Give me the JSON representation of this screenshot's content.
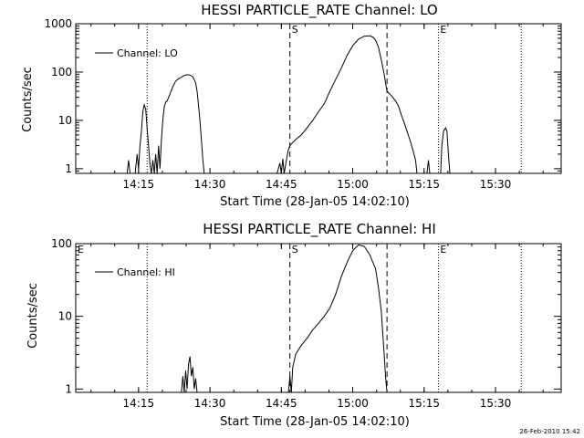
{
  "footer": {
    "timestamp": "26-Feb-2010 15:42"
  },
  "chart_data": [
    {
      "type": "line",
      "title": "HESSI PARTICLE_RATE Channel: LO",
      "xlabel": "Start Time (28-Jan-05 14:02:10)",
      "ylabel": "Counts/sec",
      "yscale": "log",
      "ylim": [
        0.8,
        1000
      ],
      "xlim": [
        14.03,
        15.73
      ],
      "xticks": [
        {
          "x": 14.25,
          "label": "14:15"
        },
        {
          "x": 14.5,
          "label": "14:30"
        },
        {
          "x": 14.75,
          "label": "14:45"
        },
        {
          "x": 15.0,
          "label": "15:00"
        },
        {
          "x": 15.25,
          "label": "15:15"
        },
        {
          "x": 15.5,
          "label": "15:30"
        }
      ],
      "yticks": [
        {
          "y": 1,
          "label": "1"
        },
        {
          "y": 10,
          "label": "10"
        },
        {
          "y": 100,
          "label": "100"
        },
        {
          "y": 1000,
          "label": "1000"
        }
      ],
      "legend": {
        "label": "Channel: LO",
        "position": "top-left"
      },
      "markers": [
        {
          "x": 14.28,
          "style": "dotted",
          "label": ""
        },
        {
          "x": 14.78,
          "style": "dashed",
          "label": "S"
        },
        {
          "x": 15.12,
          "style": "dashed",
          "label": ""
        },
        {
          "x": 15.3,
          "style": "dotted",
          "label": "E"
        },
        {
          "x": 15.59,
          "style": "dotted",
          "label": ""
        }
      ],
      "series": [
        {
          "segments": [
            [
              [
                14.21,
                0.8
              ],
              [
                14.215,
                1.5
              ],
              [
                14.22,
                0.8
              ]
            ],
            [
              [
                14.238,
                0.8
              ],
              [
                14.245,
                2
              ],
              [
                14.25,
                1
              ],
              [
                14.255,
                3
              ],
              [
                14.26,
                6
              ],
              [
                14.265,
                15
              ],
              [
                14.27,
                21
              ],
              [
                14.275,
                17
              ],
              [
                14.28,
                7
              ],
              [
                14.285,
                3
              ],
              [
                14.29,
                1.2
              ],
              [
                14.295,
                0.8
              ]
            ],
            [
              [
                14.295,
                0.8
              ],
              [
                14.3,
                1.5
              ],
              [
                14.305,
                0.8
              ],
              [
                14.31,
                2
              ],
              [
                14.315,
                0.8
              ],
              [
                14.32,
                3
              ],
              [
                14.325,
                1
              ],
              [
                14.33,
                4
              ],
              [
                14.335,
                10
              ],
              [
                14.34,
                19
              ],
              [
                14.345,
                24
              ],
              [
                14.35,
                25
              ],
              [
                14.36,
                35
              ],
              [
                14.37,
                50
              ],
              [
                14.38,
                65
              ],
              [
                14.39,
                73
              ],
              [
                14.4,
                78
              ],
              [
                14.41,
                85
              ],
              [
                14.42,
                88
              ],
              [
                14.43,
                87
              ],
              [
                14.44,
                80
              ],
              [
                14.45,
                60
              ],
              [
                14.455,
                40
              ],
              [
                14.46,
                20
              ],
              [
                14.465,
                10
              ],
              [
                14.47,
                4
              ],
              [
                14.475,
                1.5
              ],
              [
                14.48,
                0.8
              ]
            ],
            [
              [
                14.735,
                0.8
              ],
              [
                14.745,
                1.3
              ],
              [
                14.75,
                0.8
              ],
              [
                14.755,
                1.6
              ],
              [
                14.76,
                0.8
              ],
              [
                14.77,
                1.8
              ],
              [
                14.775,
                2.5
              ],
              [
                14.78,
                3
              ],
              [
                14.79,
                3.5
              ],
              [
                14.8,
                4
              ],
              [
                14.82,
                5
              ],
              [
                14.84,
                7
              ],
              [
                14.86,
                10
              ],
              [
                14.88,
                15
              ],
              [
                14.9,
                22
              ],
              [
                14.92,
                40
              ],
              [
                14.94,
                70
              ],
              [
                14.96,
                120
              ],
              [
                14.98,
                220
              ],
              [
                15.0,
                350
              ],
              [
                15.02,
                480
              ],
              [
                15.04,
                550
              ],
              [
                15.06,
                560
              ],
              [
                15.07,
                530
              ],
              [
                15.08,
                460
              ],
              [
                15.09,
                330
              ],
              [
                15.1,
                180
              ],
              [
                15.11,
                90
              ],
              [
                15.115,
                60
              ],
              [
                15.12,
                40
              ],
              [
                15.13,
                35
              ],
              [
                15.14,
                30
              ],
              [
                15.15,
                25
              ],
              [
                15.16,
                20
              ],
              [
                15.17,
                13
              ],
              [
                15.18,
                9
              ],
              [
                15.19,
                6
              ],
              [
                15.2,
                4
              ],
              [
                15.21,
                2.5
              ],
              [
                15.22,
                1.5
              ],
              [
                15.225,
                0.8
              ]
            ],
            [
              [
                15.26,
                0.8
              ],
              [
                15.265,
                1.5
              ],
              [
                15.27,
                0.8
              ]
            ],
            [
              [
                15.308,
                0.8
              ],
              [
                15.312,
                3
              ],
              [
                15.318,
                6
              ],
              [
                15.325,
                7
              ],
              [
                15.33,
                6
              ],
              [
                15.335,
                2
              ],
              [
                15.34,
                0.8
              ]
            ]
          ]
        }
      ]
    },
    {
      "type": "line",
      "title": "HESSI PARTICLE_RATE Channel: HI",
      "xlabel": "Start Time (28-Jan-05 14:02:10)",
      "ylabel": "Counts/sec",
      "yscale": "log",
      "ylim": [
        0.9,
        100
      ],
      "xlim": [
        14.03,
        15.73
      ],
      "xticks": [
        {
          "x": 14.25,
          "label": "14:15"
        },
        {
          "x": 14.5,
          "label": "14:30"
        },
        {
          "x": 14.75,
          "label": "14:45"
        },
        {
          "x": 15.0,
          "label": "15:00"
        },
        {
          "x": 15.25,
          "label": "15:15"
        },
        {
          "x": 15.5,
          "label": "15:30"
        }
      ],
      "yticks": [
        {
          "y": 1,
          "label": "1"
        },
        {
          "y": 10,
          "label": "10"
        },
        {
          "y": 100,
          "label": "100"
        }
      ],
      "legend": {
        "label": "Channel: HI",
        "position": "top-left"
      },
      "markers": [
        {
          "x": 14.03,
          "style": "none",
          "label": "E"
        },
        {
          "x": 14.28,
          "style": "dotted",
          "label": ""
        },
        {
          "x": 14.78,
          "style": "dashed",
          "label": "S"
        },
        {
          "x": 15.12,
          "style": "dashed",
          "label": ""
        },
        {
          "x": 15.3,
          "style": "dotted",
          "label": "E"
        },
        {
          "x": 15.59,
          "style": "dotted",
          "label": ""
        }
      ],
      "series": [
        {
          "segments": [
            [
              [
                14.4,
                0.9
              ],
              [
                14.405,
                1.5
              ],
              [
                14.41,
                0.9
              ],
              [
                14.415,
                1.8
              ],
              [
                14.42,
                1
              ],
              [
                14.425,
                2.2
              ],
              [
                14.43,
                2.8
              ],
              [
                14.435,
                1.5
              ],
              [
                14.44,
                2
              ],
              [
                14.445,
                1
              ],
              [
                14.45,
                1.4
              ],
              [
                14.455,
                0.9
              ]
            ],
            [
              [
                14.775,
                0.9
              ],
              [
                14.78,
                1.5
              ],
              [
                14.785,
                0.9
              ],
              [
                14.79,
                2
              ],
              [
                14.8,
                3
              ],
              [
                14.82,
                4
              ],
              [
                14.84,
                5
              ],
              [
                14.86,
                6.5
              ],
              [
                14.88,
                8
              ],
              [
                14.9,
                10
              ],
              [
                14.92,
                13
              ],
              [
                14.94,
                20
              ],
              [
                14.96,
                35
              ],
              [
                14.98,
                55
              ],
              [
                15.0,
                80
              ],
              [
                15.02,
                96
              ],
              [
                15.04,
                92
              ],
              [
                15.06,
                70
              ],
              [
                15.08,
                45
              ],
              [
                15.09,
                25
              ],
              [
                15.1,
                12
              ],
              [
                15.105,
                6
              ],
              [
                15.11,
                3
              ],
              [
                15.115,
                1.5
              ],
              [
                15.12,
                0.9
              ]
            ]
          ]
        }
      ]
    }
  ]
}
